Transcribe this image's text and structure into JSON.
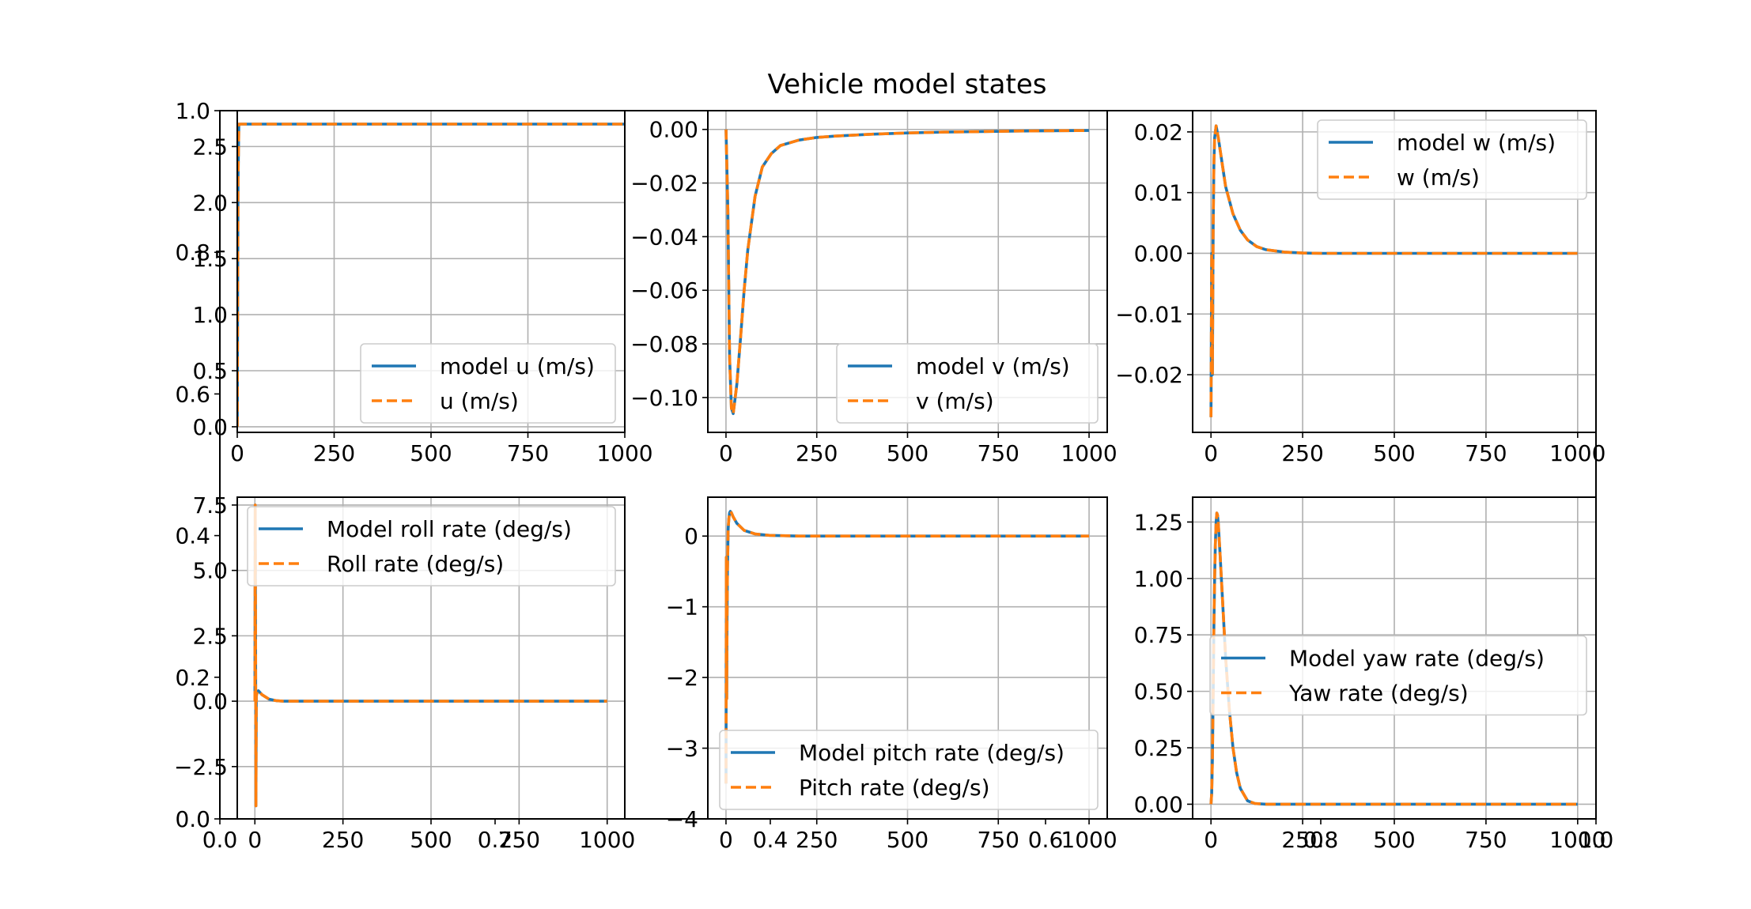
{
  "figure": {
    "suptitle": "Vehicle model states"
  },
  "colors": {
    "model": "#1f77b4",
    "measured": "#ff7f0e",
    "grid": "#b0b0b0"
  },
  "ghost_axis": {
    "x_ticks": [
      "0.0",
      "0.2",
      "0.4",
      "0.6",
      "0.8",
      "1.0"
    ],
    "y_ticks": [
      "0.0",
      "0.2",
      "0.4",
      "0.6",
      "0.8",
      "1.0"
    ]
  },
  "chart_data": [
    {
      "type": "line",
      "xlim": [
        0,
        1000
      ],
      "ylim": [
        -0.05,
        2.82
      ],
      "x_ticks": [
        0,
        250,
        500,
        750,
        1000
      ],
      "y_ticks": [
        0.0,
        0.5,
        1.0,
        1.5,
        2.0,
        2.5
      ],
      "y_tick_labels": [
        "0.0",
        "0.5",
        "1.0",
        "1.5",
        "2.0",
        "2.5"
      ],
      "legend": "lower-right",
      "series": [
        {
          "name": "model u (m/s)",
          "style": "solid",
          "x": [
            0,
            2,
            4,
            1000
          ],
          "y": [
            0.0,
            2.2,
            2.7,
            2.7
          ]
        },
        {
          "name": "u (m/s)",
          "style": "dashed",
          "x": [
            0,
            2,
            4,
            1000
          ],
          "y": [
            0.0,
            2.2,
            2.7,
            2.7
          ]
        }
      ]
    },
    {
      "type": "line",
      "xlim": [
        -50,
        1050
      ],
      "ylim": [
        -0.113,
        0.007
      ],
      "x_ticks": [
        0,
        250,
        500,
        750,
        1000
      ],
      "y_ticks": [
        0.0,
        -0.02,
        -0.04,
        -0.06,
        -0.08,
        -0.1
      ],
      "y_tick_labels": [
        "0.00",
        "−0.02",
        "−0.04",
        "−0.06",
        "−0.08",
        "−0.10"
      ],
      "legend": "lower-right",
      "series": [
        {
          "name": "model v (m/s)",
          "style": "solid",
          "x": [
            0,
            5,
            10,
            15,
            20,
            30,
            40,
            50,
            60,
            80,
            100,
            125,
            150,
            200,
            250,
            300,
            400,
            500,
            600,
            700,
            800,
            900,
            1000
          ],
          "y": [
            0.0,
            -0.03,
            -0.085,
            -0.104,
            -0.106,
            -0.095,
            -0.078,
            -0.06,
            -0.045,
            -0.025,
            -0.014,
            -0.009,
            -0.006,
            -0.004,
            -0.003,
            -0.0025,
            -0.0018,
            -0.0013,
            -0.001,
            -0.0008,
            -0.0006,
            -0.0005,
            -0.0004
          ]
        },
        {
          "name": "v (m/s)",
          "style": "dashed",
          "x": [
            0,
            5,
            10,
            15,
            20,
            30,
            40,
            50,
            60,
            80,
            100,
            125,
            150,
            200,
            250,
            300,
            400,
            500,
            600,
            700,
            800,
            900,
            1000
          ],
          "y": [
            0.0,
            -0.03,
            -0.085,
            -0.104,
            -0.106,
            -0.095,
            -0.078,
            -0.06,
            -0.045,
            -0.025,
            -0.014,
            -0.009,
            -0.006,
            -0.004,
            -0.003,
            -0.0025,
            -0.0018,
            -0.0013,
            -0.001,
            -0.0008,
            -0.0006,
            -0.0005,
            -0.0004
          ]
        }
      ]
    },
    {
      "type": "line",
      "xlim": [
        -50,
        1050
      ],
      "ylim": [
        -0.0295,
        0.0235
      ],
      "x_ticks": [
        0,
        250,
        500,
        750,
        1000
      ],
      "y_ticks": [
        0.02,
        0.01,
        0.0,
        -0.01,
        -0.02
      ],
      "y_tick_labels": [
        "0.02",
        "0.01",
        "0.00",
        "−0.01",
        "−0.02"
      ],
      "legend": "upper-right",
      "series": [
        {
          "name": "model w (m/s)",
          "style": "solid",
          "x": [
            0,
            2,
            4,
            6,
            8,
            10,
            14,
            20,
            30,
            40,
            60,
            80,
            100,
            125,
            150,
            200,
            250,
            300,
            1000
          ],
          "y": [
            -0.027,
            0.0,
            -0.02,
            0.005,
            0.015,
            0.019,
            0.021,
            0.019,
            0.015,
            0.011,
            0.0065,
            0.0038,
            0.0022,
            0.0011,
            0.0006,
            0.0002,
            5e-05,
            0.0,
            0.0
          ]
        },
        {
          "name": "w (m/s)",
          "style": "dashed",
          "x": [
            0,
            2,
            4,
            6,
            8,
            10,
            14,
            20,
            30,
            40,
            60,
            80,
            100,
            125,
            150,
            200,
            250,
            300,
            1000
          ],
          "y": [
            -0.027,
            0.0,
            -0.02,
            0.005,
            0.015,
            0.019,
            0.021,
            0.019,
            0.015,
            0.011,
            0.0065,
            0.0038,
            0.0022,
            0.0011,
            0.0006,
            0.0002,
            5e-05,
            0.0,
            0.0
          ]
        }
      ]
    },
    {
      "type": "line",
      "xlim": [
        -50,
        1050
      ],
      "ylim": [
        -4.5,
        7.8
      ],
      "x_ticks": [
        0,
        250,
        500,
        750,
        1000
      ],
      "y_ticks": [
        -2.5,
        0.0,
        2.5,
        5.0,
        7.5
      ],
      "y_tick_labels": [
        "−2.5",
        "0.0",
        "2.5",
        "5.0",
        "7.5"
      ],
      "legend": "upper-right",
      "series": [
        {
          "name": "Model roll rate (deg/s)",
          "style": "solid",
          "x": [
            0,
            1,
            2,
            3,
            4,
            6,
            10,
            20,
            40,
            60,
            80,
            1000
          ],
          "y": [
            0.0,
            7.5,
            2.0,
            -4.0,
            0.2,
            0.3,
            0.4,
            0.25,
            0.08,
            0.02,
            0.0,
            0.0
          ]
        },
        {
          "name": "Roll rate (deg/s)",
          "style": "dashed",
          "x": [
            0,
            1,
            2,
            3,
            4,
            6,
            10,
            20,
            40,
            60,
            80,
            1000
          ],
          "y": [
            0.0,
            7.5,
            2.0,
            -4.0,
            0.2,
            0.3,
            0.4,
            0.25,
            0.08,
            0.02,
            0.0,
            0.0
          ]
        }
      ]
    },
    {
      "type": "line",
      "xlim": [
        -50,
        1050
      ],
      "ylim": [
        -4.0,
        0.55
      ],
      "x_ticks": [
        0,
        250,
        500,
        750,
        1000
      ],
      "y_ticks": [
        0,
        -1,
        -2,
        -3,
        -4
      ],
      "y_tick_labels": [
        "0",
        "−1",
        "−2",
        "−3",
        "−4"
      ],
      "legend": "lower-right",
      "series": [
        {
          "name": "Model pitch rate (deg/s)",
          "style": "solid",
          "x": [
            0,
            1,
            2,
            3,
            4,
            6,
            8,
            10,
            12,
            15,
            20,
            30,
            50,
            80,
            120,
            200,
            1000
          ],
          "y": [
            -3.5,
            -0.3,
            -2.3,
            -1.2,
            -0.5,
            0.1,
            0.25,
            0.33,
            0.35,
            0.33,
            0.27,
            0.18,
            0.08,
            0.03,
            0.01,
            0.0,
            0.0
          ]
        },
        {
          "name": "Pitch rate (deg/s)",
          "style": "dashed",
          "x": [
            0,
            1,
            2,
            3,
            4,
            6,
            8,
            10,
            12,
            15,
            20,
            30,
            50,
            80,
            120,
            200,
            1000
          ],
          "y": [
            -3.5,
            -0.3,
            -2.3,
            -1.2,
            -0.5,
            0.1,
            0.25,
            0.33,
            0.35,
            0.33,
            0.27,
            0.18,
            0.08,
            0.03,
            0.01,
            0.0,
            0.0
          ]
        }
      ]
    },
    {
      "type": "line",
      "xlim": [
        -50,
        1050
      ],
      "ylim": [
        -0.065,
        1.36
      ],
      "x_ticks": [
        0,
        250,
        500,
        750,
        1000
      ],
      "y_ticks": [
        0.0,
        0.25,
        0.5,
        0.75,
        1.0,
        1.25
      ],
      "y_tick_labels": [
        "0.00",
        "0.25",
        "0.50",
        "0.75",
        "1.00",
        "1.25"
      ],
      "legend": "center-right",
      "series": [
        {
          "name": "Model yaw rate (deg/s)",
          "style": "solid",
          "x": [
            0,
            2,
            4,
            6,
            8,
            10,
            12,
            14,
            16,
            18,
            20,
            25,
            30,
            40,
            50,
            60,
            70,
            80,
            100,
            120,
            150,
            1000
          ],
          "y": [
            0.0,
            0.05,
            0.2,
            0.5,
            0.8,
            1.0,
            1.15,
            1.25,
            1.29,
            1.28,
            1.24,
            1.1,
            0.95,
            0.65,
            0.42,
            0.25,
            0.14,
            0.07,
            0.015,
            0.003,
            0.0,
            0.0
          ]
        },
        {
          "name": "Yaw rate (deg/s)",
          "style": "dashed",
          "x": [
            0,
            2,
            4,
            6,
            8,
            10,
            12,
            14,
            16,
            18,
            20,
            25,
            30,
            40,
            50,
            60,
            70,
            80,
            100,
            120,
            150,
            1000
          ],
          "y": [
            0.0,
            0.05,
            0.2,
            0.5,
            0.8,
            1.0,
            1.15,
            1.25,
            1.29,
            1.28,
            1.24,
            1.1,
            0.95,
            0.65,
            0.42,
            0.25,
            0.14,
            0.07,
            0.015,
            0.003,
            0.0,
            0.0
          ]
        }
      ]
    }
  ]
}
